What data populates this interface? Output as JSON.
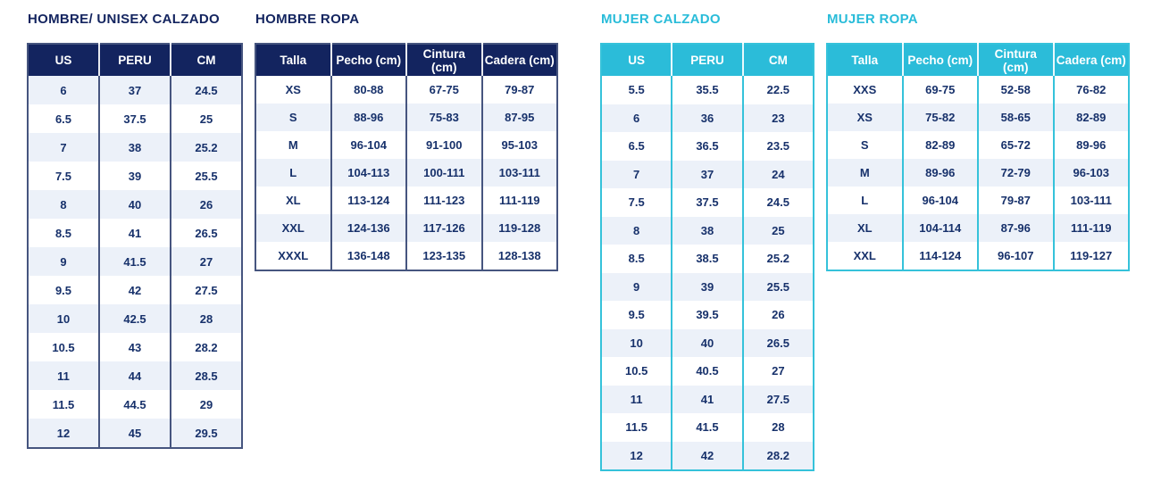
{
  "theme": {
    "navy": "#13245f",
    "cyan": "#2bbcd9",
    "cell_text": "#17316b",
    "stripe_row_bg": "#ecf1f9",
    "navy_border": "#46557f",
    "cyan_border": "#35c2da",
    "page_bg": "#ffffff"
  },
  "tables": [
    {
      "title": "HOMBRE/ UNISEX CALZADO",
      "theme": "navy",
      "headers": [
        "US",
        "PERU",
        "CM"
      ],
      "rows": [
        [
          "6",
          "37",
          "24.5"
        ],
        [
          "6.5",
          "37.5",
          "25"
        ],
        [
          "7",
          "38",
          "25.2"
        ],
        [
          "7.5",
          "39",
          "25.5"
        ],
        [
          "8",
          "40",
          "26"
        ],
        [
          "8.5",
          "41",
          "26.5"
        ],
        [
          "9",
          "41.5",
          "27"
        ],
        [
          "9.5",
          "42",
          "27.5"
        ],
        [
          "10",
          "42.5",
          "28"
        ],
        [
          "10.5",
          "43",
          "28.2"
        ],
        [
          "11",
          "44",
          "28.5"
        ],
        [
          "11.5",
          "44.5",
          "29"
        ],
        [
          "12",
          "45",
          "29.5"
        ]
      ]
    },
    {
      "title": "HOMBRE ROPA",
      "theme": "navy",
      "headers": [
        "Talla",
        "Pecho (cm)",
        "Cintura (cm)",
        "Cadera (cm)"
      ],
      "rows": [
        [
          "XS",
          "80-88",
          "67-75",
          "79-87"
        ],
        [
          "S",
          "88-96",
          "75-83",
          "87-95"
        ],
        [
          "M",
          "96-104",
          "91-100",
          "95-103"
        ],
        [
          "L",
          "104-113",
          "100-111",
          "103-111"
        ],
        [
          "XL",
          "113-124",
          "111-123",
          "111-119"
        ],
        [
          "XXL",
          "124-136",
          "117-126",
          "119-128"
        ],
        [
          "XXXL",
          "136-148",
          "123-135",
          "128-138"
        ]
      ]
    },
    {
      "title": "MUJER CALZADO",
      "theme": "cyan",
      "headers": [
        "US",
        "PERU",
        "CM"
      ],
      "rows": [
        [
          "5.5",
          "35.5",
          "22.5"
        ],
        [
          "6",
          "36",
          "23"
        ],
        [
          "6.5",
          "36.5",
          "23.5"
        ],
        [
          "7",
          "37",
          "24"
        ],
        [
          "7.5",
          "37.5",
          "24.5"
        ],
        [
          "8",
          "38",
          "25"
        ],
        [
          "8.5",
          "38.5",
          "25.2"
        ],
        [
          "9",
          "39",
          "25.5"
        ],
        [
          "9.5",
          "39.5",
          "26"
        ],
        [
          "10",
          "40",
          "26.5"
        ],
        [
          "10.5",
          "40.5",
          "27"
        ],
        [
          "11",
          "41",
          "27.5"
        ],
        [
          "11.5",
          "41.5",
          "28"
        ],
        [
          "12",
          "42",
          "28.2"
        ]
      ]
    },
    {
      "title": "MUJER ROPA",
      "theme": "cyan",
      "headers": [
        "Talla",
        "Pecho (cm)",
        "Cintura (cm)",
        "Cadera (cm)"
      ],
      "rows": [
        [
          "XXS",
          "69-75",
          "52-58",
          "76-82"
        ],
        [
          "XS",
          "75-82",
          "58-65",
          "82-89"
        ],
        [
          "S",
          "82-89",
          "65-72",
          "89-96"
        ],
        [
          "M",
          "89-96",
          "72-79",
          "96-103"
        ],
        [
          "L",
          "96-104",
          "79-87",
          "103-111"
        ],
        [
          "XL",
          "104-114",
          "87-96",
          "111-119"
        ],
        [
          "XXL",
          "114-124",
          "96-107",
          "119-127"
        ]
      ]
    }
  ]
}
